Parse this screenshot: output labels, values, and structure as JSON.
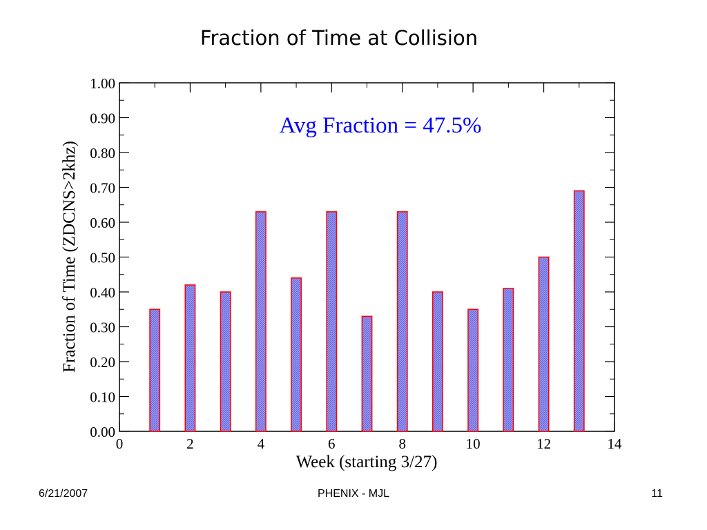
{
  "slide": {
    "title": "Fraction of Time at Collision",
    "footer_date": "6/21/2007",
    "footer_center": "PHENIX - MJL",
    "page_number": "11"
  },
  "chart_data": {
    "type": "bar",
    "xlabel": "Week (starting 3/27)",
    "ylabel": "Fraction of Time (ZDCNS>2khz)",
    "annotation": "Avg Fraction = 47.5%",
    "xlim": [
      0,
      14
    ],
    "ylim": [
      0,
      1.0
    ],
    "x_ticks": [
      0,
      2,
      4,
      6,
      8,
      10,
      12,
      14
    ],
    "y_ticks": [
      "0.00",
      "0.10",
      "0.20",
      "0.30",
      "0.40",
      "0.50",
      "0.60",
      "0.70",
      "0.80",
      "0.90",
      "1.00"
    ],
    "grid": false,
    "x": [
      1,
      2,
      3,
      4,
      5,
      6,
      7,
      8,
      9,
      10,
      11,
      12,
      13
    ],
    "values": [
      0.35,
      0.42,
      0.4,
      0.63,
      0.44,
      0.63,
      0.33,
      0.63,
      0.4,
      0.35,
      0.41,
      0.5,
      0.69
    ],
    "bar_fill": "#8888ee",
    "bar_edge": "#ff0000",
    "annotation_color": "#0000ff"
  }
}
